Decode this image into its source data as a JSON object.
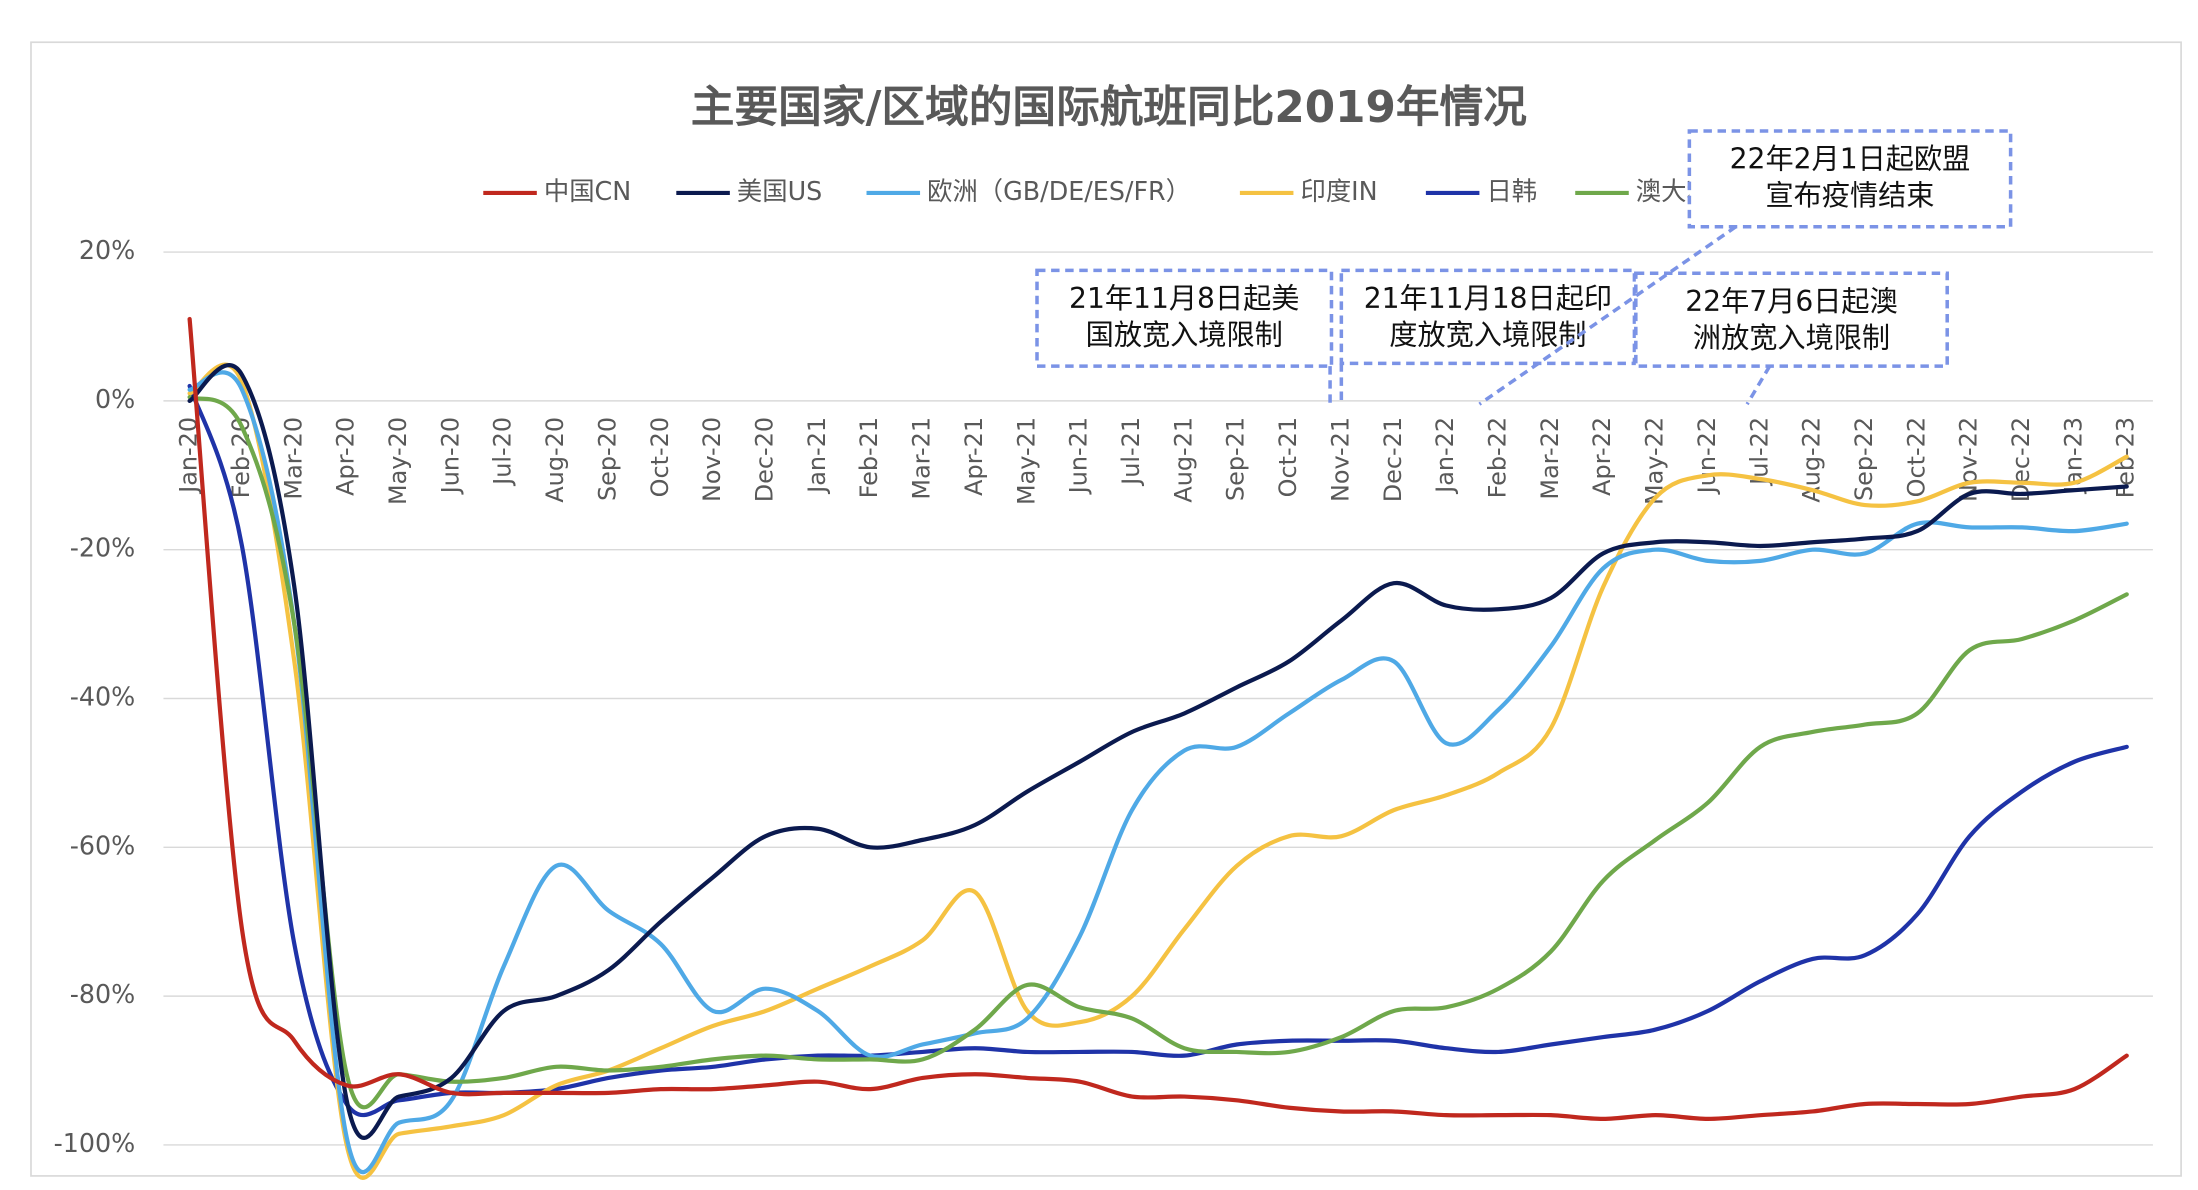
{
  "chart_data": {
    "type": "line",
    "title": "主要国家/区域的国际航班同比2019年情况",
    "categories": [
      "Jan-20",
      "Feb-20",
      "Mar-20",
      "Apr-20",
      "May-20",
      "Jun-20",
      "Jul-20",
      "Aug-20",
      "Sep-20",
      "Oct-20",
      "Nov-20",
      "Dec-20",
      "Jan-21",
      "Feb-21",
      "Mar-21",
      "Apr-21",
      "May-21",
      "Jun-21",
      "Jul-21",
      "Aug-21",
      "Sep-21",
      "Oct-21",
      "Nov-21",
      "Dec-21",
      "Jan-22",
      "Feb-22",
      "Mar-22",
      "Apr-22",
      "May-22",
      "Jun-22",
      "Jul-22",
      "Aug-22",
      "Sep-22",
      "Oct-22",
      "Nov-22",
      "Dec-22",
      "Jan-23",
      "Feb-23"
    ],
    "ylim": [
      -100,
      20
    ],
    "yticks": [
      {
        "value": -100,
        "label": "-100%"
      },
      {
        "value": -80,
        "label": "-80%"
      },
      {
        "value": -60,
        "label": "-60%"
      },
      {
        "value": -40,
        "label": "-40%"
      },
      {
        "value": -20,
        "label": "-20%"
      },
      {
        "value": 0,
        "label": "0%"
      },
      {
        "value": 20,
        "label": "20%"
      }
    ],
    "grid": true,
    "series": [
      {
        "name": "中国CN",
        "color": "#c0281e",
        "values": [
          11,
          -71,
          -86,
          -92,
          -90.5,
          -93,
          -93,
          -93,
          -93,
          -92.5,
          -92.5,
          -92,
          -91.5,
          -92.5,
          -91,
          -90.5,
          -91,
          -91.5,
          -93.5,
          -93.5,
          -94,
          -95,
          -95.5,
          -95.5,
          -96,
          -96,
          -96,
          -96.5,
          -96,
          -96.5,
          -96,
          -95.5,
          -94.5,
          -94.5,
          -94.5,
          -93.5,
          -92.5,
          -88
        ]
      },
      {
        "name": "美国US",
        "color": "#0b1a4f",
        "values": [
          0,
          3.5,
          -25,
          -94,
          -93.5,
          -91,
          -82,
          -80,
          -76.5,
          -70,
          -64,
          -58.5,
          -57.5,
          -60,
          -59,
          -57,
          -52.5,
          -48.5,
          -44.5,
          -42,
          -38.5,
          -35,
          -29.5,
          -24.5,
          -27.5,
          -28,
          -26.5,
          -20.5,
          -19,
          -19,
          -19.5,
          -19,
          -18.5,
          -17.5,
          -12.5,
          -12.5,
          -12,
          -11.5
        ]
      },
      {
        "name": "欧洲（GB/DE/ES/FR）",
        "color": "#4fa9e6",
        "values": [
          1.5,
          1.5,
          -30,
          -99,
          -97,
          -94,
          -76,
          -62.5,
          -68.5,
          -73,
          -82,
          -79,
          -82,
          -88,
          -86.5,
          -85,
          -83,
          -72,
          -55,
          -47,
          -46.5,
          -42,
          -37.5,
          -35,
          -46,
          -41.5,
          -33,
          -22.5,
          -20,
          -21.5,
          -21.5,
          -20,
          -20.5,
          -16.5,
          -17,
          -17,
          -17.5,
          -16.5
        ]
      },
      {
        "name": "印度IN",
        "color": "#f5c242",
        "values": [
          1,
          2.5,
          -35,
          -100,
          -98.5,
          -97.5,
          -96,
          -92,
          -90,
          -87,
          -84,
          -82,
          -79,
          -76,
          -72.5,
          -66,
          -82,
          -83.5,
          -80,
          -71,
          -62.5,
          -58.5,
          -58.5,
          -55,
          -53,
          -50,
          -44,
          -25,
          -13,
          -10,
          -10.5,
          -12,
          -14,
          -13.5,
          -11,
          -11,
          -11,
          -7.5
        ]
      },
      {
        "name": "日韩",
        "color": "#1f33a8",
        "values": [
          2,
          -19.5,
          -73,
          -94.5,
          -94,
          -93,
          -93,
          -92.5,
          -91,
          -90,
          -89.5,
          -88.5,
          -88,
          -88,
          -87.5,
          -87,
          -87.5,
          -87.5,
          -87.5,
          -88,
          -86.5,
          -86,
          -86,
          -86,
          -87,
          -87.5,
          -86.5,
          -85.5,
          -84.5,
          -82,
          -78,
          -75,
          -74.5,
          -69,
          -58.5,
          -52.5,
          -48.5,
          -46.5
        ]
      },
      {
        "name": "澳大利亚",
        "color": "#6fa84b",
        "values": [
          0.5,
          -3.5,
          -30,
          -90.5,
          -90.5,
          -91.5,
          -91,
          -89.5,
          -90,
          -89.5,
          -88.5,
          -88,
          -88.5,
          -88.5,
          -88.5,
          -84.5,
          -78.5,
          -81.5,
          -83,
          -87,
          -87.5,
          -87.5,
          -85.5,
          -82,
          -81.5,
          -79,
          -74,
          -64.5,
          -59,
          -54,
          -46.5,
          -44.5,
          -43.5,
          -42,
          -33.5,
          -32,
          -29.5,
          -26
        ]
      }
    ],
    "annotations": [
      [
        "21年11月8日起美",
        "国放宽入境限制"
      ],
      [
        "21年11月18日起印",
        "度放宽入境限制"
      ],
      [
        "22年7月6日起澳",
        "洲放宽入境限制"
      ],
      [
        "22年2月1日起欧盟",
        "宣布疫情结束"
      ]
    ]
  }
}
